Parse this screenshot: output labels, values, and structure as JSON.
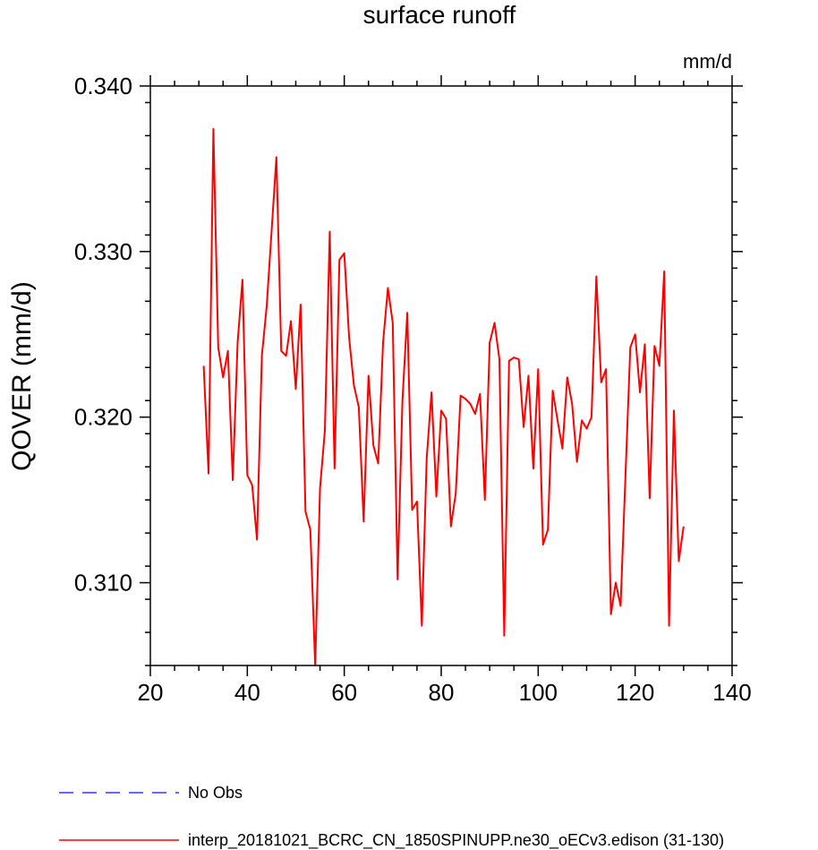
{
  "chart_data": {
    "type": "line",
    "title": "surface runoff",
    "units": "mm/d",
    "ylabel": "QOVER  (mm/d)",
    "xlabel": "",
    "xlim": [
      20,
      140
    ],
    "ylim": [
      0.305,
      0.34
    ],
    "xticks": [
      "20",
      "40",
      "60",
      "80",
      "100",
      "120",
      "140"
    ],
    "xtick_values": [
      20,
      40,
      60,
      80,
      100,
      120,
      140
    ],
    "yticks": [
      "0.310",
      "0.320",
      "0.330",
      "0.340"
    ],
    "ytick_values": [
      0.31,
      0.32,
      0.33,
      0.34
    ],
    "grid": false,
    "legend_position": "bottom-left",
    "series": [
      {
        "name": "interp_20181021_BCRC_CN_1850SPINUPP.ne30_oECv3.edison (31-130)",
        "color": "#ff0000",
        "style": "solid",
        "x": [
          31,
          32,
          33,
          34,
          35,
          36,
          37,
          38,
          39,
          40,
          41,
          42,
          43,
          44,
          45,
          46,
          47,
          48,
          49,
          50,
          51,
          52,
          53,
          54,
          55,
          56,
          57,
          58,
          59,
          60,
          61,
          62,
          63,
          64,
          65,
          66,
          67,
          68,
          69,
          70,
          71,
          72,
          73,
          74,
          75,
          76,
          77,
          78,
          79,
          80,
          81,
          82,
          83,
          84,
          85,
          86,
          87,
          88,
          89,
          90,
          91,
          92,
          93,
          94,
          95,
          96,
          97,
          98,
          99,
          100,
          101,
          102,
          103,
          104,
          105,
          106,
          107,
          108,
          109,
          110,
          111,
          112,
          113,
          114,
          115,
          116,
          117,
          118,
          119,
          120,
          121,
          122,
          123,
          124,
          125,
          126,
          127,
          128,
          129,
          130
        ],
        "y": [
          0.3231,
          0.3166,
          0.3374,
          0.3242,
          0.3224,
          0.324,
          0.3162,
          0.3245,
          0.3283,
          0.3165,
          0.3159,
          0.3126,
          0.3237,
          0.3267,
          0.3312,
          0.3357,
          0.324,
          0.3237,
          0.3258,
          0.3217,
          0.3268,
          0.3143,
          0.3132,
          0.305,
          0.3157,
          0.3192,
          0.3312,
          0.3169,
          0.3295,
          0.3299,
          0.3248,
          0.3219,
          0.3206,
          0.3137,
          0.3225,
          0.3183,
          0.3172,
          0.3245,
          0.3278,
          0.3257,
          0.3102,
          0.321,
          0.3263,
          0.3144,
          0.3149,
          0.3074,
          0.3175,
          0.3215,
          0.3152,
          0.3204,
          0.3199,
          0.3134,
          0.3154,
          0.3213,
          0.3211,
          0.3208,
          0.3202,
          0.3214,
          0.315,
          0.3245,
          0.3257,
          0.3235,
          0.3068,
          0.3234,
          0.3236,
          0.3235,
          0.3194,
          0.3225,
          0.3169,
          0.3229,
          0.3123,
          0.3132,
          0.3216,
          0.3198,
          0.3181,
          0.3224,
          0.3208,
          0.3173,
          0.3198,
          0.3193,
          0.32,
          0.3285,
          0.3221,
          0.3229,
          0.3081,
          0.31,
          0.3086,
          0.3164,
          0.3242,
          0.325,
          0.3215,
          0.3244,
          0.3151,
          0.3243,
          0.3231,
          0.3288,
          0.3074,
          0.3204,
          0.3113,
          0.3134
        ]
      }
    ],
    "legend": [
      {
        "label": "No Obs",
        "color": "#3333ff",
        "style": "dashed"
      },
      {
        "label": "interp_20181021_BCRC_CN_1850SPINUPP.ne30_oECv3.edison (31-130)",
        "color": "#ff0000",
        "style": "solid"
      }
    ]
  }
}
